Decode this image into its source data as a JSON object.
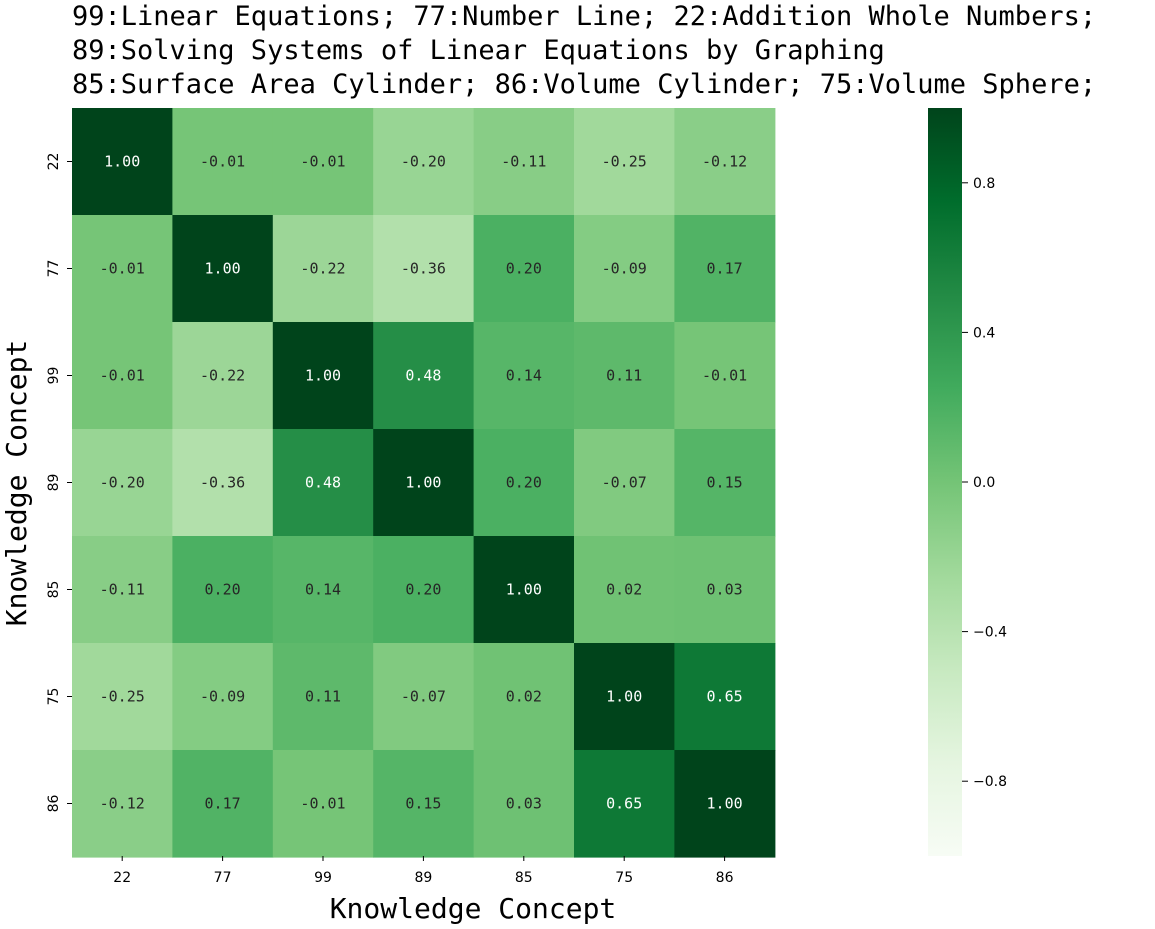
{
  "chart_data": {
    "type": "heatmap",
    "title_lines": [
      "99:Linear Equations; 77:Number Line; 22:Addition Whole Numbers;",
      "89:Solving Systems of Linear Equations by Graphing",
      "85:Surface Area Cylinder; 86:Volume Cylinder; 75:Volume Sphere;"
    ],
    "xlabel": "Knowledge Concept",
    "ylabel": "Knowledge Concept",
    "x_categories": [
      "22",
      "77",
      "99",
      "89",
      "85",
      "75",
      "86"
    ],
    "y_categories": [
      "22",
      "77",
      "99",
      "89",
      "85",
      "75",
      "86"
    ],
    "values": [
      [
        1.0,
        -0.01,
        -0.01,
        -0.2,
        -0.11,
        -0.25,
        -0.12
      ],
      [
        -0.01,
        1.0,
        -0.22,
        -0.36,
        0.2,
        -0.09,
        0.17
      ],
      [
        -0.01,
        -0.22,
        1.0,
        0.48,
        0.14,
        0.11,
        -0.01
      ],
      [
        -0.2,
        -0.36,
        0.48,
        1.0,
        0.2,
        -0.07,
        0.15
      ],
      [
        -0.11,
        0.2,
        0.14,
        0.2,
        1.0,
        0.02,
        0.03
      ],
      [
        -0.25,
        -0.09,
        0.11,
        -0.07,
        0.02,
        1.0,
        0.65
      ],
      [
        -0.12,
        0.17,
        -0.01,
        0.15,
        0.03,
        0.65,
        1.0
      ]
    ],
    "value_format": "0.00",
    "colormap": "Greens",
    "colorbar": {
      "range": [
        -1.0,
        1.0
      ],
      "ticks": [
        0.8,
        0.4,
        0.0,
        -0.4,
        -0.8
      ],
      "tick_labels": [
        "0.8",
        "0.4",
        "0.0",
        "−0.4",
        "−0.8"
      ]
    }
  }
}
